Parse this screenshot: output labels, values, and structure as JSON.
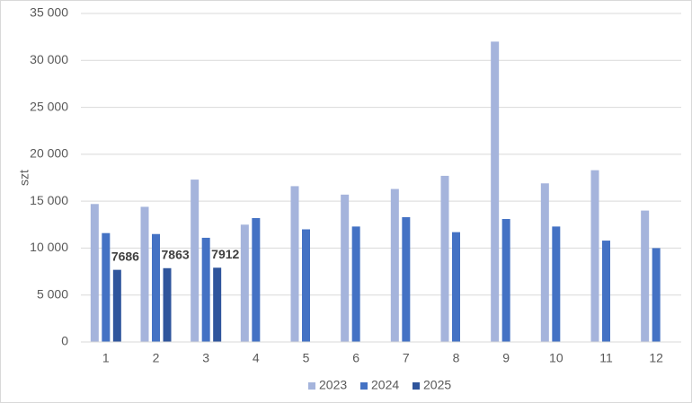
{
  "chart_data": {
    "type": "bar",
    "ylabel": "szt",
    "categories": [
      "1",
      "2",
      "3",
      "4",
      "5",
      "6",
      "7",
      "8",
      "9",
      "10",
      "11",
      "12"
    ],
    "series": [
      {
        "name": "2023",
        "color": "#a5b4dc",
        "values": [
          14700,
          14400,
          17300,
          12500,
          16600,
          15700,
          16300,
          17700,
          32000,
          16900,
          18300,
          14000
        ]
      },
      {
        "name": "2024",
        "color": "#4472c4",
        "values": [
          11600,
          11500,
          11100,
          13200,
          12000,
          12300,
          13300,
          11700,
          13100,
          12300,
          10800,
          10000
        ]
      },
      {
        "name": "2025",
        "color": "#2f559c",
        "values": [
          7686,
          7863,
          7912,
          null,
          null,
          null,
          null,
          null,
          null,
          null,
          null,
          null
        ],
        "data_labels": true
      }
    ],
    "ylim": [
      0,
      35000
    ],
    "yticks": [
      0,
      {
        "value": 5000,
        "label": "5 000"
      },
      {
        "value": 10000,
        "label": "10 000"
      },
      {
        "value": 15000,
        "label": "15 000"
      },
      {
        "value": 20000,
        "label": "20 000"
      },
      {
        "value": 25000,
        "label": "25 000"
      },
      {
        "value": 30000,
        "label": "30 000"
      },
      {
        "value": 35000,
        "label": "35 000"
      }
    ],
    "grid": true,
    "legend": "bottom"
  }
}
